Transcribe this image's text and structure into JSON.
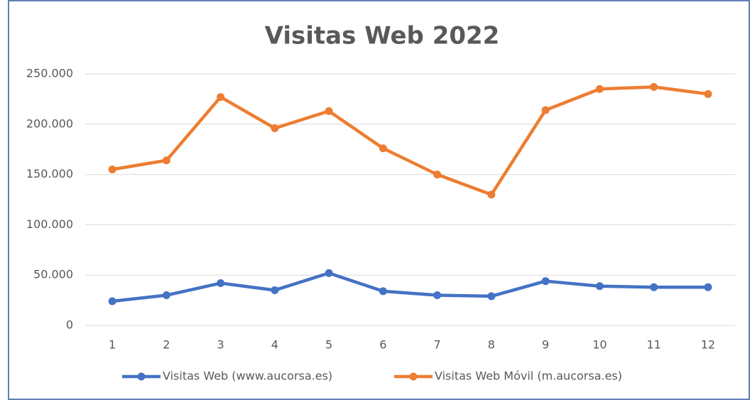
{
  "chart_data": {
    "type": "line",
    "title": "Visitas Web 2022",
    "categories": [
      "1",
      "2",
      "3",
      "4",
      "5",
      "6",
      "7",
      "8",
      "9",
      "10",
      "11",
      "12"
    ],
    "series": [
      {
        "name": "Visitas Web (www.aucorsa.es)",
        "color": "#4472c4",
        "values": [
          24000,
          30000,
          42000,
          35000,
          52000,
          34000,
          30000,
          29000,
          44000,
          39000,
          38000,
          38000
        ]
      },
      {
        "name": "Visitas Web Móvil (m.aucorsa.es)",
        "color": "#ed7d31",
        "values": [
          155000,
          164000,
          227000,
          196000,
          213000,
          176000,
          150000,
          130000,
          214000,
          235000,
          237000,
          230000
        ]
      }
    ],
    "ylim": [
      0,
      250000
    ],
    "yticks": [
      0,
      {
        "value": 50000,
        "label": "50.000"
      },
      {
        "value": 100000,
        "label": "100.000"
      },
      {
        "value": 150000,
        "label": "150.000"
      },
      {
        "value": 200000,
        "label": "200.000"
      },
      {
        "value": 250000,
        "label": "250.000"
      }
    ],
    "grid": true,
    "legend": "bottom"
  }
}
